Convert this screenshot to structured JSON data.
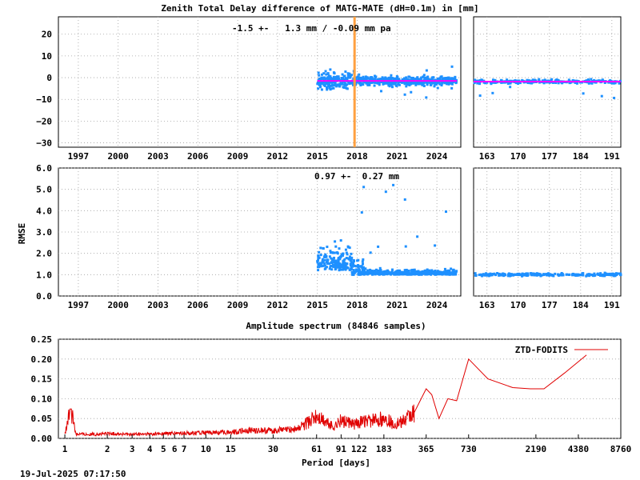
{
  "title": "Zenith Total Delay difference of MATG-MATE (dH=0.1m) in [mm]",
  "timestamp": "19-Jul-2025 07:17:50",
  "colors": {
    "points": "#1e90ff",
    "mean": "#ff00ff",
    "event": "#ffa040",
    "spectrum": "#e00000",
    "grid": "#a0a0a0"
  },
  "chart_data": [
    {
      "type": "scatter",
      "ylim": [
        -32,
        28
      ],
      "xlim": [
        1995.5,
        2025.8
      ],
      "yticks": [
        "20",
        "10",
        "0",
        "−10",
        "−20",
        "−30"
      ],
      "xticks": [
        "1997",
        "2000",
        "2003",
        "2006",
        "2009",
        "2012",
        "2015",
        "2018",
        "2021",
        "2024"
      ],
      "annotation": "-1.5 +-   1.3 mm / -0.09 mm pa",
      "event_line_year": 2017.8,
      "mean_value": -1.5,
      "series": [
        {
          "x_start": 2015.0,
          "x_end": 2025.5,
          "center": -1.5,
          "spread": 2.5
        }
      ]
    },
    {
      "type": "scatter",
      "ylim": [
        160,
        193
      ],
      "xticks": [
        "163",
        "170",
        "177",
        "184",
        "191"
      ],
      "series": [
        {
          "x_start": 160,
          "x_end": 193,
          "center": -1.8,
          "spread": 1.2
        }
      ]
    },
    {
      "type": "scatter",
      "ylabel": "RMSE",
      "ylim": [
        0,
        6
      ],
      "xlim": [
        1995.5,
        2025.8
      ],
      "yticks": [
        "6.0",
        "5.0",
        "4.0",
        "3.0",
        "2.0",
        "1.0",
        "0.0"
      ],
      "xticks": [
        "1997",
        "2000",
        "2003",
        "2006",
        "2009",
        "2012",
        "2015",
        "2018",
        "2021",
        "2024"
      ],
      "annotation": "0.97 +-  0.27 mm",
      "series": [
        {
          "x_start": 2015.0,
          "x_end": 2025.5,
          "center": 1.0,
          "spread": 0.3
        }
      ]
    },
    {
      "type": "scatter",
      "ylim": [
        0,
        6
      ],
      "xticks": [
        "163",
        "170",
        "177",
        "184",
        "191"
      ],
      "series": [
        {
          "x_start": 160,
          "x_end": 193,
          "center": 1.0,
          "spread": 0.1
        }
      ]
    },
    {
      "type": "line",
      "title": "Amplitude spectrum (84846 samples)",
      "xlabel": "Period [days]",
      "ylim": [
        0,
        0.25
      ],
      "yticks": [
        "0.25",
        "0.20",
        "0.15",
        "0.10",
        "0.05",
        "0.00"
      ],
      "xticks": [
        "1",
        "2",
        "3",
        "4",
        "5",
        "6",
        "7",
        "10",
        "15",
        "30",
        "61",
        "91",
        "122",
        "183",
        "365",
        "730",
        "2190",
        "4380",
        "8760"
      ],
      "legend": "ZTD-FODITS",
      "series": [
        {
          "name": "ZTD-FODITS",
          "points": [
            [
              1,
              0.01
            ],
            [
              1.1,
              0.074
            ],
            [
              1.2,
              0.012
            ],
            [
              1.5,
              0.01
            ],
            [
              2,
              0.012
            ],
            [
              3,
              0.01
            ],
            [
              5,
              0.012
            ],
            [
              7,
              0.013
            ],
            [
              10,
              0.014
            ],
            [
              15,
              0.016
            ],
            [
              20,
              0.02
            ],
            [
              30,
              0.02
            ],
            [
              45,
              0.025
            ],
            [
              61,
              0.055
            ],
            [
              80,
              0.03
            ],
            [
              91,
              0.045
            ],
            [
              110,
              0.035
            ],
            [
              122,
              0.04
            ],
            [
              150,
              0.045
            ],
            [
              183,
              0.05
            ],
            [
              220,
              0.035
            ],
            [
              260,
              0.045
            ],
            [
              300,
              0.065
            ],
            [
              365,
              0.125
            ],
            [
              400,
              0.11
            ],
            [
              450,
              0.05
            ],
            [
              520,
              0.1
            ],
            [
              600,
              0.095
            ],
            [
              730,
              0.2
            ],
            [
              1000,
              0.15
            ],
            [
              1500,
              0.128
            ],
            [
              2000,
              0.125
            ],
            [
              2500,
              0.125
            ],
            [
              3500,
              0.165
            ],
            [
              5000,
              0.21
            ]
          ]
        }
      ]
    }
  ]
}
